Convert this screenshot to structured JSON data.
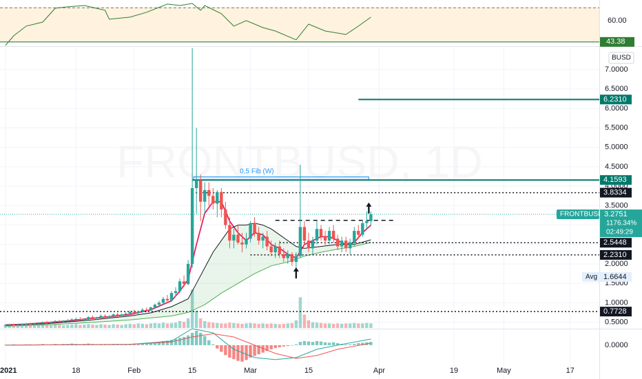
{
  "chart_data": {
    "type": "candlestick",
    "watermark": "FRONTBUSD, 1D",
    "currency": "BUSD",
    "up_color": "#26a69a",
    "down_color": "#ef5350",
    "xlim": [
      -1.3,
      143
    ],
    "xticks": [
      {
        "value": 0,
        "label": "2021"
      },
      {
        "value": 17,
        "label": "18"
      },
      {
        "value": 31,
        "label": "Feb"
      },
      {
        "value": 45,
        "label": "15"
      },
      {
        "value": 59,
        "label": "Mar"
      },
      {
        "value": 73,
        "label": "15"
      },
      {
        "value": 90,
        "label": "Apr"
      },
      {
        "value": 108,
        "label": "19"
      },
      {
        "value": 120,
        "label": "May"
      },
      {
        "value": 136,
        "label": "17"
      }
    ],
    "ylim": [
      0.35,
      7.55
    ],
    "yticks": [
      {
        "value": 0.5,
        "label": "0.5000"
      },
      {
        "value": 1,
        "label": "1.0000"
      },
      {
        "value": 1.5,
        "label": "1.5000"
      },
      {
        "value": 2,
        "label": "2.0000"
      },
      {
        "value": 2.5,
        "label": "2.5000"
      },
      {
        "value": 3,
        "label": "3.0000"
      },
      {
        "value": 3.5,
        "label": "3.5000"
      },
      {
        "value": 4,
        "label": "4.0000"
      },
      {
        "value": 4.5,
        "label": "4.5000"
      },
      {
        "value": 5,
        "label": "5.0000"
      },
      {
        "value": 5.5,
        "label": "5.5000"
      },
      {
        "value": 6,
        "label": "6.0000"
      },
      {
        "value": 6.5,
        "label": "6.5000"
      },
      {
        "value": 7,
        "label": "7.0000"
      }
    ],
    "grid": true,
    "x": [
      0,
      1,
      2,
      3,
      4,
      5,
      6,
      7,
      8,
      9,
      10,
      11,
      12,
      13,
      14,
      15,
      16,
      17,
      18,
      19,
      20,
      21,
      22,
      23,
      24,
      25,
      26,
      27,
      28,
      29,
      30,
      31,
      32,
      33,
      34,
      35,
      36,
      37,
      38,
      39,
      40,
      41,
      42,
      43,
      44,
      45,
      46,
      47,
      48,
      49,
      50,
      51,
      52,
      53,
      54,
      55,
      56,
      57,
      58,
      59,
      60,
      61,
      62,
      63,
      64,
      65,
      66,
      67,
      68,
      69,
      70,
      71,
      72,
      73,
      74,
      75,
      76,
      77,
      78,
      79,
      80,
      81,
      82,
      83,
      84,
      85,
      86,
      87,
      88
    ],
    "ohlc": [
      [
        0.42,
        0.45,
        0.4,
        0.43
      ],
      [
        0.43,
        0.46,
        0.41,
        0.44
      ],
      [
        0.44,
        0.46,
        0.42,
        0.43
      ],
      [
        0.43,
        0.45,
        0.41,
        0.44
      ],
      [
        0.44,
        0.47,
        0.43,
        0.45
      ],
      [
        0.45,
        0.48,
        0.43,
        0.46
      ],
      [
        0.46,
        0.49,
        0.44,
        0.45
      ],
      [
        0.45,
        0.48,
        0.43,
        0.47
      ],
      [
        0.47,
        0.5,
        0.45,
        0.48
      ],
      [
        0.48,
        0.52,
        0.46,
        0.5
      ],
      [
        0.5,
        0.53,
        0.47,
        0.49
      ],
      [
        0.49,
        0.52,
        0.46,
        0.51
      ],
      [
        0.51,
        0.55,
        0.49,
        0.53
      ],
      [
        0.53,
        0.56,
        0.5,
        0.52
      ],
      [
        0.52,
        0.55,
        0.49,
        0.54
      ],
      [
        0.54,
        0.58,
        0.51,
        0.55
      ],
      [
        0.55,
        0.6,
        0.53,
        0.57
      ],
      [
        0.57,
        0.62,
        0.54,
        0.58
      ],
      [
        0.58,
        0.63,
        0.55,
        0.56
      ],
      [
        0.56,
        0.6,
        0.52,
        0.58
      ],
      [
        0.58,
        0.65,
        0.56,
        0.63
      ],
      [
        0.63,
        0.67,
        0.58,
        0.6
      ],
      [
        0.6,
        0.64,
        0.56,
        0.62
      ],
      [
        0.62,
        0.7,
        0.6,
        0.66
      ],
      [
        0.66,
        0.7,
        0.61,
        0.63
      ],
      [
        0.63,
        0.68,
        0.6,
        0.65
      ],
      [
        0.65,
        0.72,
        0.62,
        0.7
      ],
      [
        0.7,
        0.74,
        0.64,
        0.66
      ],
      [
        0.66,
        0.72,
        0.63,
        0.7
      ],
      [
        0.7,
        0.76,
        0.66,
        0.72
      ],
      [
        0.72,
        0.8,
        0.68,
        0.76
      ],
      [
        0.76,
        0.82,
        0.7,
        0.74
      ],
      [
        0.74,
        0.8,
        0.7,
        0.78
      ],
      [
        0.78,
        0.86,
        0.74,
        0.82
      ],
      [
        0.82,
        0.88,
        0.76,
        0.8
      ],
      [
        0.8,
        0.9,
        0.78,
        0.88
      ],
      [
        0.88,
        0.98,
        0.84,
        0.95
      ],
      [
        0.95,
        1.05,
        0.88,
        1.0
      ],
      [
        1.0,
        1.15,
        0.95,
        1.1
      ],
      [
        1.1,
        1.2,
        1.0,
        1.06
      ],
      [
        1.06,
        1.3,
        1.02,
        1.25
      ],
      [
        1.25,
        1.4,
        1.15,
        1.3
      ],
      [
        1.3,
        1.62,
        1.25,
        1.55
      ],
      [
        1.55,
        1.7,
        1.4,
        1.48
      ],
      [
        1.48,
        2.1,
        1.45,
        2.0
      ],
      [
        2.0,
        7.55,
        1.9,
        3.95
      ],
      [
        3.95,
        5.5,
        3.3,
        4.15
      ],
      [
        4.15,
        4.3,
        3.1,
        3.6
      ],
      [
        3.6,
        4.1,
        3.3,
        3.9
      ],
      [
        3.9,
        4.1,
        3.5,
        3.75
      ],
      [
        3.75,
        3.95,
        3.4,
        3.55
      ],
      [
        3.55,
        3.9,
        3.2,
        3.85
      ],
      [
        3.85,
        3.95,
        3.2,
        3.4
      ],
      [
        3.4,
        3.6,
        2.9,
        3.0
      ],
      [
        3.0,
        3.2,
        2.4,
        2.6
      ],
      [
        2.6,
        2.9,
        2.4,
        2.75
      ],
      [
        2.75,
        3.0,
        2.5,
        2.55
      ],
      [
        2.55,
        2.8,
        2.3,
        2.5
      ],
      [
        2.5,
        2.8,
        2.4,
        2.65
      ],
      [
        2.65,
        3.1,
        2.55,
        3.05
      ],
      [
        3.05,
        3.2,
        2.7,
        2.8
      ],
      [
        2.8,
        2.95,
        2.5,
        2.6
      ],
      [
        2.6,
        2.8,
        2.4,
        2.7
      ],
      [
        2.7,
        2.85,
        2.35,
        2.45
      ],
      [
        2.45,
        2.6,
        2.2,
        2.3
      ],
      [
        2.3,
        2.55,
        2.15,
        2.45
      ],
      [
        2.45,
        2.6,
        2.15,
        2.25
      ],
      [
        2.25,
        2.4,
        2.05,
        2.15
      ],
      [
        2.15,
        2.35,
        2.0,
        2.25
      ],
      [
        2.25,
        2.3,
        1.95,
        2.05
      ],
      [
        2.05,
        2.3,
        1.85,
        2.2
      ],
      [
        2.2,
        4.55,
        2.15,
        2.95
      ],
      [
        2.95,
        3.1,
        2.5,
        2.6
      ],
      [
        2.6,
        2.8,
        2.3,
        2.4
      ],
      [
        2.4,
        2.7,
        2.25,
        2.6
      ],
      [
        2.6,
        3.1,
        2.5,
        2.9
      ],
      [
        2.9,
        3.0,
        2.6,
        2.7
      ],
      [
        2.7,
        2.85,
        2.45,
        2.6
      ],
      [
        2.6,
        2.95,
        2.5,
        2.85
      ],
      [
        2.85,
        3.0,
        2.55,
        2.65
      ],
      [
        2.65,
        2.75,
        2.35,
        2.45
      ],
      [
        2.45,
        2.7,
        2.3,
        2.6
      ],
      [
        2.6,
        2.7,
        2.3,
        2.4
      ],
      [
        2.4,
        2.65,
        2.25,
        2.55
      ],
      [
        2.55,
        2.95,
        2.45,
        2.85
      ],
      [
        2.85,
        3.0,
        2.65,
        2.75
      ],
      [
        2.75,
        3.1,
        2.7,
        3.05
      ],
      [
        3.05,
        3.35,
        2.9,
        3.1
      ],
      [
        3.1,
        3.35,
        3.0,
        3.2751
      ]
    ],
    "moving_averages": [
      {
        "color": "#e91e63",
        "x": [
          0,
          5,
          10,
          15,
          20,
          25,
          30,
          35,
          40,
          42,
          44,
          46,
          48,
          50,
          52,
          54,
          56,
          58,
          60,
          62,
          64,
          66,
          68,
          70,
          72,
          74,
          76,
          78,
          80,
          82,
          84,
          86,
          88
        ],
        "values": [
          0.43,
          0.45,
          0.49,
          0.53,
          0.59,
          0.64,
          0.7,
          0.82,
          1.05,
          1.3,
          1.6,
          2.5,
          3.3,
          3.6,
          3.6,
          3.1,
          2.8,
          2.6,
          2.8,
          2.75,
          2.5,
          2.4,
          2.25,
          2.15,
          2.5,
          2.6,
          2.7,
          2.7,
          2.6,
          2.5,
          2.55,
          2.8,
          3.0
        ]
      },
      {
        "color": "#131722",
        "x": [
          0,
          10,
          20,
          30,
          35,
          40,
          44,
          46,
          50,
          54,
          56,
          58,
          60,
          62,
          64,
          66,
          68,
          70,
          72,
          76,
          80,
          84,
          88
        ],
        "values": [
          0.42,
          0.46,
          0.55,
          0.66,
          0.74,
          0.9,
          1.1,
          1.5,
          2.3,
          2.9,
          3.0,
          3.0,
          3.05,
          3.0,
          2.9,
          2.75,
          2.6,
          2.45,
          2.4,
          2.45,
          2.5,
          2.5,
          2.62
        ]
      },
      {
        "color": "#4caf50",
        "x": [
          0,
          10,
          20,
          30,
          40,
          44,
          48,
          52,
          56,
          60,
          64,
          68,
          72,
          76,
          80,
          84,
          88
        ],
        "values": [
          0.4,
          0.43,
          0.49,
          0.56,
          0.66,
          0.75,
          0.95,
          1.25,
          1.5,
          1.75,
          1.95,
          2.05,
          2.2,
          2.3,
          2.38,
          2.45,
          2.55
        ]
      }
    ],
    "levels": [
      {
        "value": 6.231,
        "label": "6.2310",
        "color": "#00796b",
        "style": "solid",
        "from": 85
      },
      {
        "value": 4.1593,
        "label": "4.1593",
        "color": "#00796b",
        "style": "solid",
        "from": 45
      },
      {
        "value": 3.8334,
        "label": "3.8334",
        "color": "#131722",
        "style": "dotted",
        "from": 45
      },
      {
        "value": 2.5448,
        "label": "2.5448",
        "color": "#131722",
        "style": "dotted",
        "from": 66
      },
      {
        "value": 2.231,
        "label": "2.2310",
        "color": "#131722",
        "style": "dotted",
        "from": 59
      },
      {
        "value": 0.7728,
        "label": "0.7728",
        "color": "#131722",
        "style": "dotted",
        "from": -1.3
      }
    ],
    "fib": {
      "label": "0,5 Fib (W)",
      "x": [
        45.3,
        87.5
      ],
      "y": [
        4.1593,
        4.24
      ]
    },
    "resistance": {
      "x": [
        65,
        94
      ],
      "value": 3.12
    },
    "arrows": [
      {
        "x": 70,
        "y": 1.75
      },
      {
        "x": 87.5,
        "y": 3.42
      }
    ],
    "last_price": {
      "name": "FRONTBUSD",
      "value": 3.2751,
      "change": "1176.34%",
      "countdown": "02:49:29"
    },
    "average": {
      "label": "Avg",
      "value": 1.6644
    },
    "volume": {
      "ylim": [
        0,
        120
      ],
      "values": [
        6,
        7,
        6,
        8,
        7,
        6,
        7,
        8,
        7,
        9,
        8,
        7,
        9,
        8,
        7,
        8,
        9,
        10,
        8,
        9,
        10,
        9,
        8,
        10,
        9,
        8,
        10,
        9,
        8,
        10,
        11,
        10,
        12,
        11,
        10,
        12,
        13,
        12,
        14,
        12,
        13,
        14,
        18,
        16,
        25,
        100,
        45,
        25,
        18,
        15,
        14,
        13,
        12,
        12,
        14,
        13,
        12,
        11,
        12,
        13,
        12,
        11,
        12,
        11,
        12,
        11,
        10,
        11,
        12,
        13,
        20,
        80,
        35,
        20,
        15,
        14,
        13,
        12,
        12,
        11,
        12,
        11,
        12,
        12,
        13,
        12,
        12,
        13,
        12
      ]
    },
    "rsi": {
      "ylim": [
        40.6,
        76.1
      ],
      "yticks": [
        {
          "value": 60,
          "label": "60.00"
        }
      ],
      "band": [
        44,
        70.75
      ],
      "upper": 70,
      "ma": {
        "value": 43.38,
        "label": "43.38"
      },
      "color": "#2e7d32",
      "x": [
        0,
        2,
        5,
        9,
        12,
        15,
        19,
        24,
        25,
        30,
        34,
        39,
        42,
        45,
        47,
        48,
        52,
        55,
        58,
        62,
        65,
        70,
        73,
        77,
        82,
        85,
        88
      ],
      "values": [
        40.6,
        48.2,
        55.7,
        58.9,
        69.7,
        70.8,
        71.8,
        68.1,
        61.1,
        62.7,
        66.5,
        72.9,
        71.8,
        73.4,
        68.1,
        71.8,
        65.4,
        55.7,
        60,
        54.6,
        51.9,
        45,
        57.3,
        51.9,
        49.2,
        55.7,
        62.7
      ]
    },
    "macd": {
      "ylim": [
        -0.82,
        0.35
      ],
      "yticks": [
        {
          "value": 0,
          "label": "0.0000"
        }
      ],
      "histogram": [
        0.01,
        0.01,
        0.02,
        0.01,
        0.01,
        0.02,
        0.02,
        0.01,
        0.02,
        0.03,
        0.02,
        0.02,
        0.03,
        0.02,
        0.03,
        0.03,
        0.04,
        0.03,
        0.02,
        0.03,
        0.04,
        0.03,
        0.02,
        0.03,
        0.03,
        0.02,
        0.03,
        0.03,
        0.02,
        0.03,
        0.03,
        0.04,
        0.04,
        0.05,
        0.05,
        0.06,
        0.07,
        0.08,
        0.1,
        0.11,
        0.13,
        0.15,
        0.18,
        0.2,
        0.24,
        0.3,
        0.35,
        0.3,
        0.22,
        0.12,
        0.02,
        -0.08,
        -0.16,
        -0.24,
        -0.3,
        -0.34,
        -0.38,
        -0.4,
        -0.36,
        -0.3,
        -0.26,
        -0.22,
        -0.18,
        -0.14,
        -0.1,
        -0.07,
        -0.05,
        -0.03,
        -0.02,
        -0.01,
        0.02,
        0.08,
        0.1,
        0.09,
        0.08,
        0.1,
        0.09,
        0.07,
        0.06,
        0.07,
        0.05,
        0.03,
        0.02,
        0.02,
        0.03,
        0.05,
        0.06,
        0.07,
        0.08
      ],
      "lines": [
        {
          "color": "#26a69a",
          "x": [
            0,
            30,
            40,
            45,
            50,
            55,
            60,
            65,
            70,
            75,
            80,
            88
          ],
          "values": [
            0,
            0.02,
            0.1,
            0.4,
            0.3,
            -0.1,
            -0.3,
            -0.35,
            -0.3,
            -0.1,
            0,
            0.15
          ]
        },
        {
          "color": "#ef5350",
          "x": [
            0,
            30,
            40,
            45,
            50,
            55,
            60,
            65,
            70,
            75,
            80,
            88
          ],
          "values": [
            0,
            0.02,
            0.08,
            0.2,
            0.28,
            0.2,
            0,
            -0.2,
            -0.32,
            -0.25,
            -0.1,
            0.05
          ]
        }
      ]
    }
  }
}
